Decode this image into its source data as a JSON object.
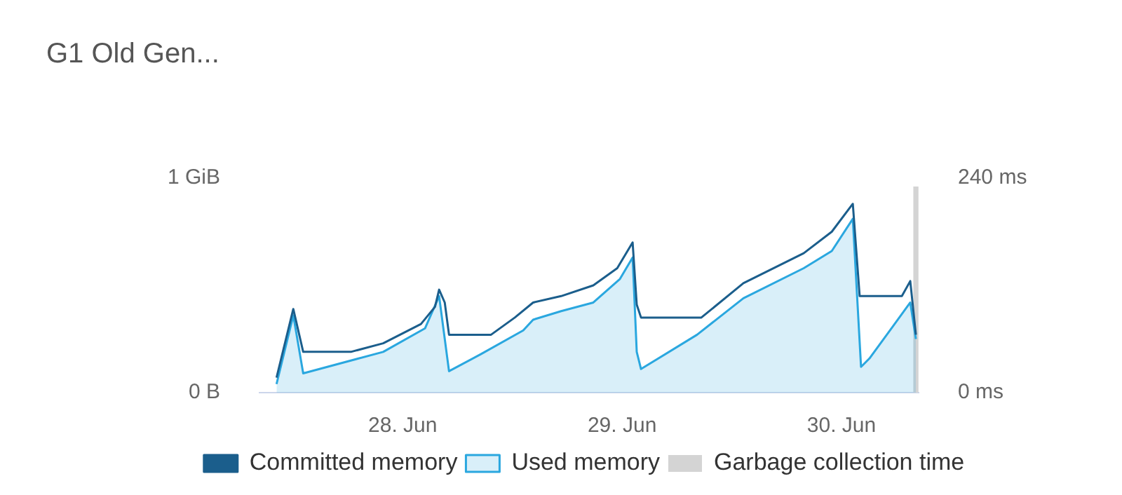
{
  "chart_data": {
    "type": "line",
    "title": "G1 Old Gen...",
    "xlim": [
      "--06-27T08:20",
      "--06-30T08:26"
    ],
    "xticks": [
      {
        "value": "--06-28",
        "label": "28. Jun"
      },
      {
        "value": "--06-29",
        "label": "29. Jun"
      },
      {
        "value": "--06-30",
        "label": "30. Jun"
      }
    ],
    "ylim": [
      0,
      1
    ],
    "yticks": [
      {
        "value": 0,
        "label": "0 B"
      },
      {
        "value": 1,
        "label": "1 GiB"
      }
    ],
    "y2lim": [
      0,
      240
    ],
    "y2ticks": [
      {
        "value": 0,
        "label": "0 ms"
      },
      {
        "value": 240,
        "label": "240 ms"
      }
    ],
    "legend": "bottom",
    "marker": "none",
    "series": [
      {
        "name": "Committed memory",
        "color": "#1b5e8c",
        "x": [
          "--06-27T10:12",
          "--06-27T12:02",
          "--06-27T13:07",
          "--06-27T18:20",
          "--06-27T21:52",
          "--06-28T02:00",
          "--06-28T03:32",
          "--06-28T03:59",
          "--06-28T04:36",
          "--06-28T05:04",
          "--06-28T09:40",
          "--06-28T12:16",
          "--06-28T14:16",
          "--06-28T17:20",
          "--06-28T20:51",
          "--06-28T23:28",
          "--06-29T01:09",
          "--06-29T01:36",
          "--06-29T02:04",
          "--06-29T08:40",
          "--06-29T13:16",
          "--06-29T19:52",
          "--06-29T22:56",
          "--06-30T01:14",
          "--06-30T01:59",
          "--06-30T06:36",
          "--06-30T07:31",
          "--06-30T08:08"
        ],
        "values": [
          0.07,
          0.39,
          0.19,
          0.19,
          0.23,
          0.32,
          0.4,
          0.48,
          0.42,
          0.27,
          0.27,
          0.35,
          0.42,
          0.45,
          0.5,
          0.58,
          0.7,
          0.41,
          0.35,
          0.35,
          0.51,
          0.65,
          0.75,
          0.88,
          0.45,
          0.45,
          0.52,
          0.27
        ]
      },
      {
        "name": "Used memory",
        "type": "area",
        "color": "#2aa7df",
        "x": [
          "--06-27T10:12",
          "--06-27T12:02",
          "--06-27T13:07",
          "--06-27T21:52",
          "--06-28T02:27",
          "--06-28T03:59",
          "--06-28T05:04",
          "--06-28T08:35",
          "--06-28T13:11",
          "--06-28T14:16",
          "--06-28T17:20",
          "--06-28T20:51",
          "--06-28T23:46",
          "--06-29T01:09",
          "--06-29T01:36",
          "--06-29T02:04",
          "--06-29T08:12",
          "--06-29T13:16",
          "--06-29T19:52",
          "--06-29T22:56",
          "--06-30T01:14",
          "--06-30T02:08",
          "--06-30T03:04",
          "--06-30T07:31",
          "--06-30T08:08"
        ],
        "values": [
          0.04,
          0.36,
          0.09,
          0.19,
          0.3,
          0.45,
          0.1,
          0.18,
          0.29,
          0.34,
          0.38,
          0.42,
          0.53,
          0.63,
          0.19,
          0.11,
          0.27,
          0.44,
          0.58,
          0.66,
          0.81,
          0.12,
          0.16,
          0.42,
          0.25
        ]
      },
      {
        "name": "Garbage collection time",
        "type": "bar",
        "axis": "y2",
        "color": "#d4d4d4",
        "x": [
          "--06-30T08:08"
        ],
        "values": [
          230
        ]
      }
    ]
  }
}
